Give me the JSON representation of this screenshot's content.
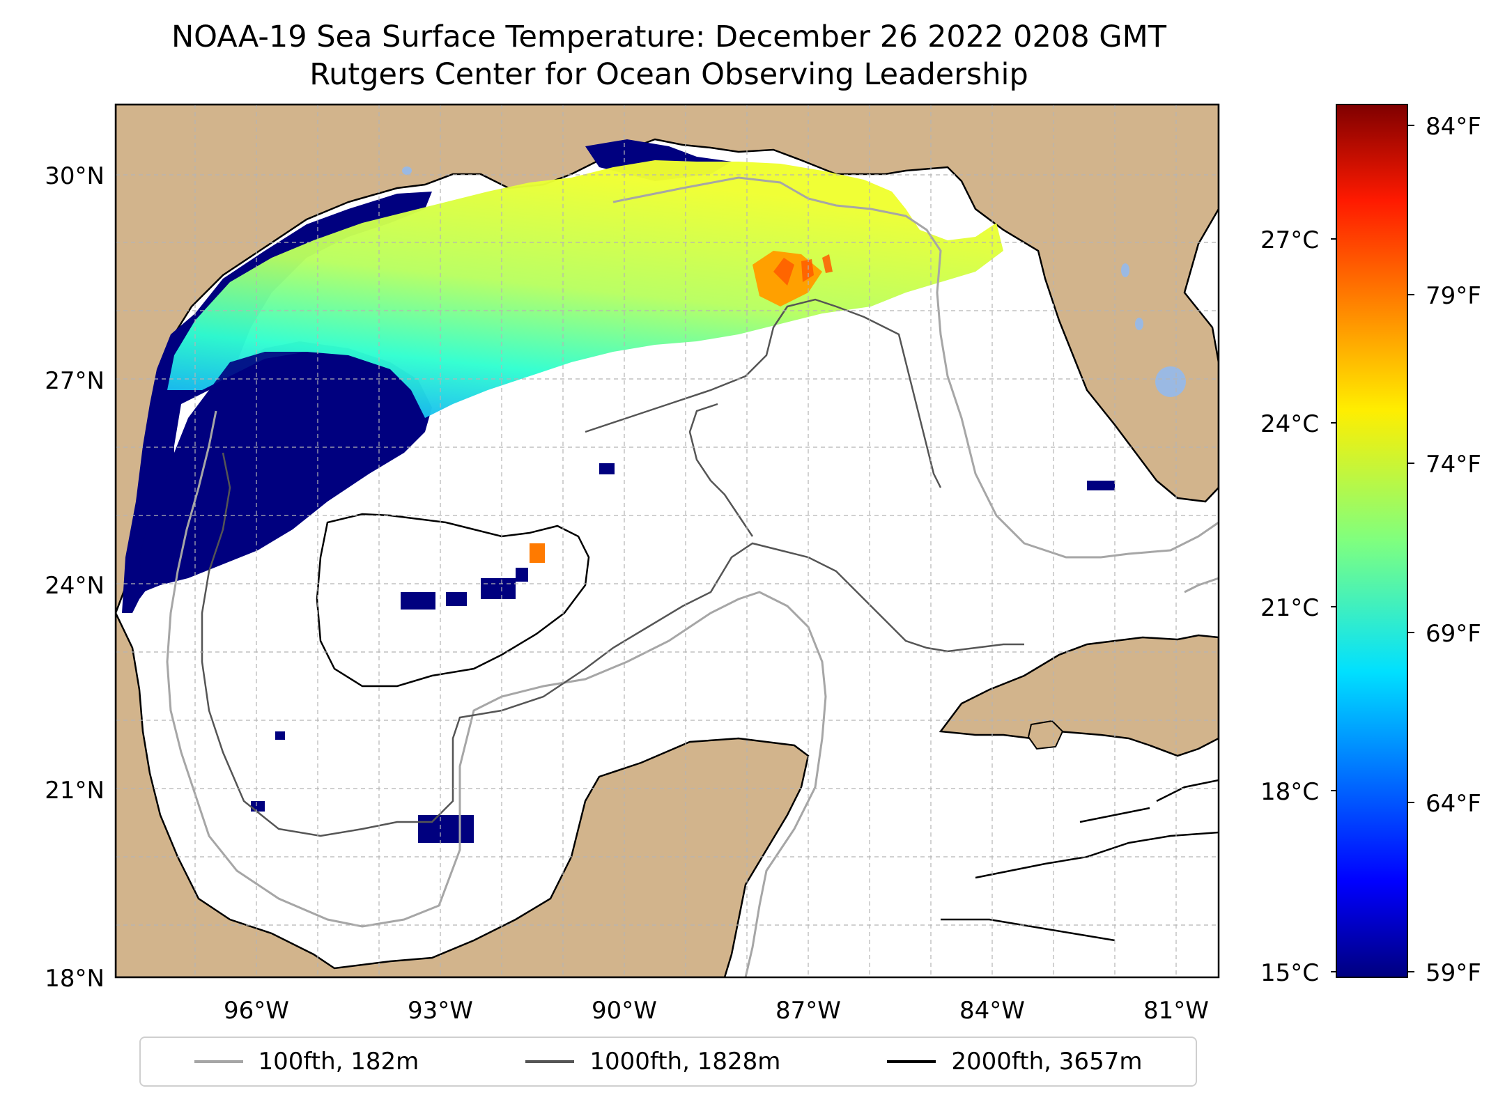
{
  "title": "NOAA-19 Sea Surface Temperature: December 26 2022 0208 GMT",
  "subtitle": "Rutgers Center for Ocean Observing Leadership",
  "map": {
    "lat_range": [
      18,
      31.1
    ],
    "lon_range": [
      -98.2,
      -80.4
    ],
    "lat_ticks": [
      "30°N",
      "27°N",
      "24°N",
      "21°N",
      "18°N"
    ],
    "lon_ticks": [
      "96°W",
      "93°W",
      "90°W",
      "87°W",
      "84°W",
      "81°W"
    ],
    "colors": {
      "land": "#d2b48c",
      "water": "#ffffff",
      "lakes": "#9ab9e3"
    }
  },
  "colorbar": {
    "colormap": "jet",
    "celsius_ticks": [
      "27°C",
      "24°C",
      "21°C",
      "18°C",
      "15°C"
    ],
    "fahrenheit_ticks": [
      "84°F",
      "79°F",
      "74°F",
      "69°F",
      "64°F",
      "59°F"
    ]
  },
  "legend": [
    {
      "label": "100fth, 182m",
      "color": "#a6a6a6"
    },
    {
      "label": "1000fth, 1828m",
      "color": "#555555"
    },
    {
      "label": "2000fth, 3657m",
      "color": "#000000"
    }
  ]
}
